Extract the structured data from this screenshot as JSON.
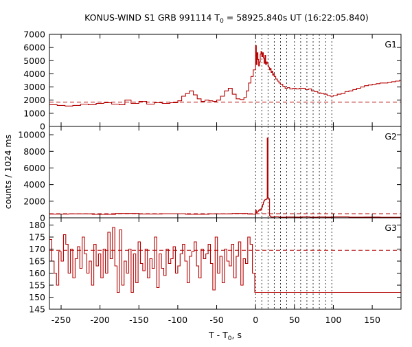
{
  "chart_data": {
    "type": "line",
    "title": {
      "prefix": "KONUS-WIND S1 GRB 991114 T",
      "subscript": "0",
      "suffix": " = 58925.840s UT (16:22:05.840)"
    },
    "xlabel": {
      "prefix": "T - T",
      "subscript": "0",
      "suffix": ", s"
    },
    "ylabel": "counts / 1024 ms",
    "xlim": [
      -265,
      187
    ],
    "x_ticks": [
      -250,
      -200,
      -150,
      -100,
      -50,
      0,
      50,
      100,
      150
    ],
    "x_tick_labels": [
      "-250",
      "-200",
      "-150",
      "-100",
      "-50",
      "0",
      "50",
      "100",
      "150"
    ],
    "colors": {
      "curve": "#b40000",
      "background": "#b40000",
      "frame": "#000000"
    },
    "markers": [
      0,
      8,
      16,
      24,
      32,
      40,
      50,
      58,
      66,
      74,
      82,
      90,
      98
    ],
    "panels": [
      {
        "name": "G1",
        "label": "G1",
        "ylim": [
          0,
          7000
        ],
        "y_ticks": [
          0,
          1000,
          2000,
          3000,
          4000,
          5000,
          6000,
          7000
        ],
        "y_tick_labels": [
          "0",
          "1000",
          "2000",
          "3000",
          "4000",
          "5000",
          "6000",
          "7000"
        ],
        "background": 1850,
        "series": {
          "x": [
            -265,
            -255,
            -245,
            -235,
            -225,
            -215,
            -205,
            -195,
            -185,
            -175,
            -168,
            -160,
            -150,
            -140,
            -130,
            -120,
            -110,
            -100,
            -95,
            -90,
            -85,
            -80,
            -75,
            -70,
            -65,
            -60,
            -55,
            -50,
            -45,
            -40,
            -35,
            -30,
            -25,
            -20,
            -15,
            -12,
            -9,
            -6,
            -3,
            0,
            1,
            2,
            3,
            4,
            5,
            6,
            7,
            8,
            9,
            10,
            11,
            12,
            13,
            14,
            15,
            16,
            17,
            18,
            19,
            20,
            21,
            22,
            23,
            24,
            26,
            28,
            30,
            32,
            35,
            38,
            41,
            44,
            48,
            52,
            56,
            60,
            64,
            68,
            72,
            76,
            80,
            84,
            88,
            92,
            96,
            100,
            105,
            110,
            115,
            120,
            125,
            130,
            135,
            140,
            145,
            150,
            155,
            160,
            165,
            170,
            175,
            180,
            185
          ],
          "y": [
            1650,
            1600,
            1550,
            1600,
            1700,
            1650,
            1750,
            1800,
            1700,
            1650,
            2000,
            1750,
            1900,
            1700,
            1800,
            1750,
            1800,
            1950,
            2300,
            2500,
            2700,
            2400,
            2100,
            1900,
            2000,
            1950,
            1900,
            2000,
            2300,
            2700,
            2900,
            2450,
            2100,
            2050,
            2200,
            2700,
            3300,
            3800,
            4300,
            6150,
            4700,
            5600,
            5100,
            4600,
            4900,
            5500,
            5700,
            5300,
            5600,
            5200,
            4800,
            5400,
            4700,
            4900,
            4800,
            4600,
            4500,
            4300,
            4400,
            4100,
            4200,
            3900,
            4000,
            3800,
            3600,
            3450,
            3300,
            3200,
            3050,
            2900,
            2950,
            2850,
            2900,
            2850,
            2900,
            2900,
            2800,
            2850,
            2700,
            2650,
            2550,
            2500,
            2450,
            2350,
            2300,
            2350,
            2450,
            2500,
            2650,
            2700,
            2800,
            2900,
            3000,
            3100,
            3150,
            3200,
            3250,
            3300,
            3300,
            3350,
            3400,
            3450,
            3500
          ]
        }
      },
      {
        "name": "G2",
        "label": "G2",
        "ylim": [
          0,
          11000
        ],
        "y_ticks": [
          0,
          2000,
          4000,
          6000,
          8000,
          10000
        ],
        "y_tick_labels": [
          "0",
          "2000",
          "4000",
          "6000",
          "8000",
          "10000"
        ],
        "background": 500,
        "series": {
          "x": [
            -265,
            -240,
            -210,
            -180,
            -150,
            -120,
            -90,
            -60,
            -30,
            -10,
            0,
            1,
            2,
            3,
            4,
            5,
            6,
            7,
            8,
            9,
            10,
            11,
            12,
            13,
            14,
            15,
            16,
            17,
            18,
            19,
            20,
            25,
            30,
            40,
            50,
            60,
            70,
            80,
            90,
            100,
            120,
            140,
            160,
            187
          ],
          "y": [
            450,
            480,
            420,
            520,
            460,
            500,
            430,
            480,
            520,
            450,
            900,
            600,
            700,
            800,
            900,
            1000,
            900,
            1100,
            1300,
            1600,
            1900,
            2100,
            2200,
            2200,
            2300,
            9600,
            2400,
            2300,
            250,
            150,
            100,
            120,
            80,
            100,
            90,
            110,
            80,
            100,
            90,
            110,
            80,
            90,
            70,
            80
          ]
        }
      },
      {
        "name": "G3",
        "label": "G3",
        "ylim": [
          145,
          183
        ],
        "y_ticks": [
          145,
          150,
          155,
          160,
          165,
          170,
          175,
          180
        ],
        "y_tick_labels": [
          "145",
          "150",
          "155",
          "160",
          "165",
          "170",
          "175",
          "180"
        ],
        "background": 169.5,
        "series": {
          "x": [
            -265,
            -262,
            -259,
            -256,
            -253,
            -250,
            -247,
            -244,
            -241,
            -238,
            -235,
            -232,
            -229,
            -226,
            -223,
            -220,
            -217,
            -214,
            -211,
            -208,
            -205,
            -202,
            -199,
            -196,
            -193,
            -190,
            -187,
            -184,
            -181,
            -178,
            -175,
            -172,
            -169,
            -166,
            -163,
            -160,
            -157,
            -154,
            -151,
            -148,
            -145,
            -142,
            -139,
            -136,
            -133,
            -130,
            -127,
            -124,
            -121,
            -118,
            -115,
            -112,
            -109,
            -106,
            -103,
            -100,
            -97,
            -94,
            -91,
            -88,
            -85,
            -82,
            -79,
            -76,
            -73,
            -70,
            -67,
            -64,
            -61,
            -58,
            -55,
            -52,
            -49,
            -46,
            -43,
            -40,
            -37,
            -34,
            -31,
            -28,
            -25,
            -22,
            -19,
            -16,
            -13,
            -10,
            -7,
            -4,
            -1
          ],
          "y": [
            174,
            165,
            160,
            155,
            169,
            165,
            176,
            172,
            160,
            170,
            158,
            166,
            171,
            162,
            175,
            168,
            160,
            165,
            155,
            172,
            163,
            168,
            158,
            170,
            160,
            177,
            166,
            179,
            163,
            152,
            178,
            155,
            165,
            160,
            170,
            152,
            168,
            156,
            173,
            164,
            161,
            170,
            158,
            166,
            162,
            175,
            154,
            168,
            162,
            159,
            170,
            164,
            166,
            171,
            160,
            163,
            168,
            172,
            165,
            156,
            167,
            169,
            173,
            163,
            158,
            170,
            166,
            168,
            172,
            164,
            153,
            175,
            160,
            167,
            156,
            170,
            165,
            163,
            172,
            158,
            167,
            173,
            155,
            166,
            164,
            175,
            172,
            160,
            152
          ]
        }
      }
    ]
  }
}
